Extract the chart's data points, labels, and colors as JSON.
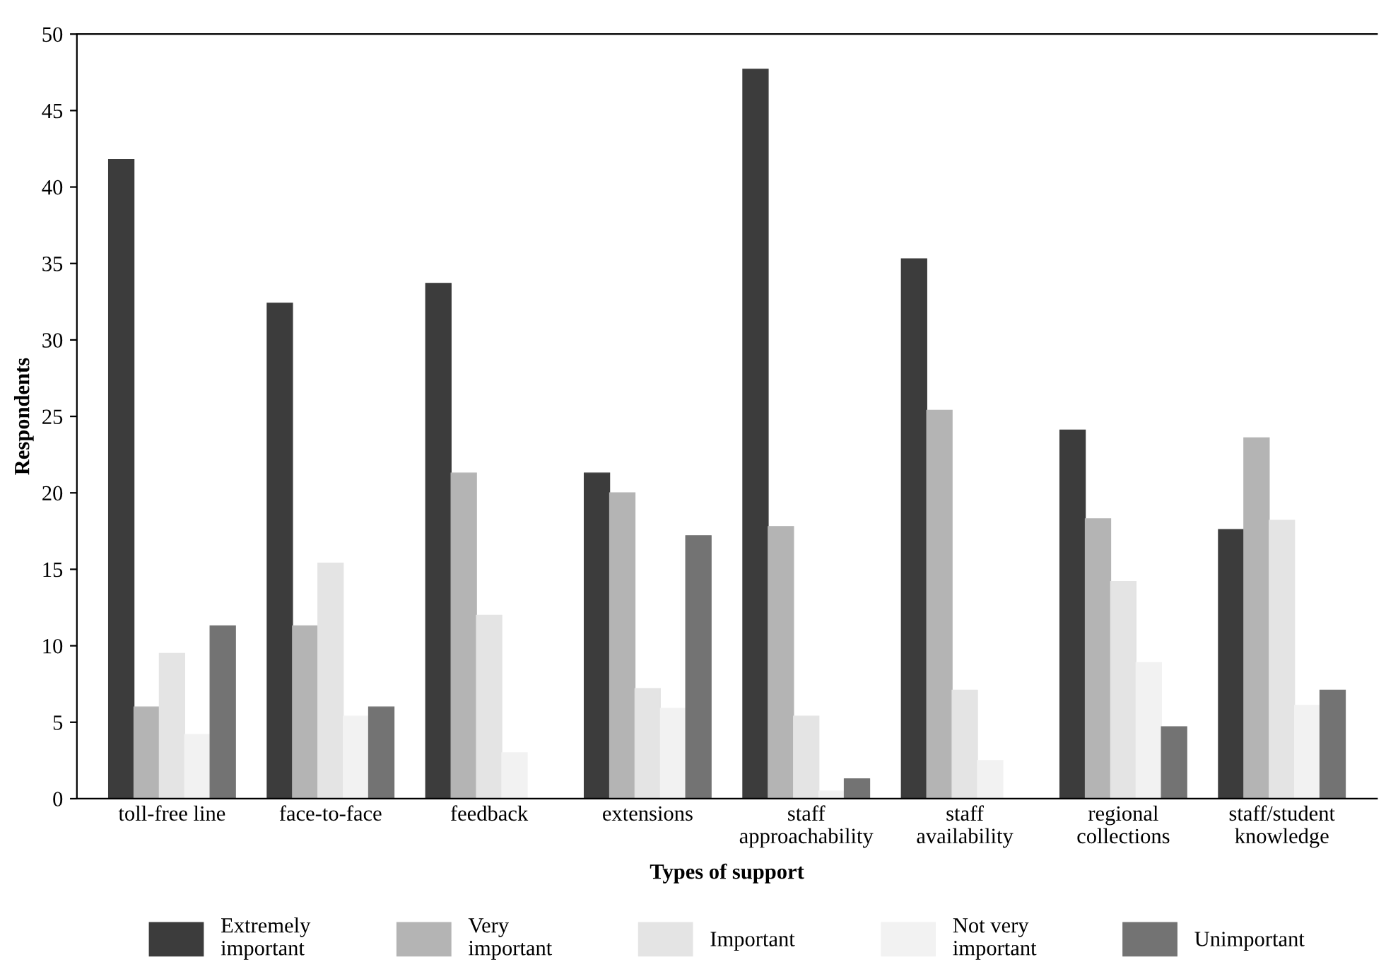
{
  "chart_data": {
    "type": "bar",
    "xlabel": "Types of support",
    "ylabel": "Respondents",
    "categories": [
      "toll-free line",
      "face-to-face",
      "feedback",
      "extensions",
      "staff\napproachability",
      "staff\navailability",
      "regional\ncollections",
      "staff/student\nknowledge"
    ],
    "series": [
      {
        "name": "Extremely\nimportant",
        "color": "#3c3c3c",
        "values": [
          41.8,
          32.4,
          33.7,
          21.3,
          47.7,
          35.3,
          24.1,
          17.6
        ]
      },
      {
        "name": "Very\nimportant",
        "color": "#b4b4b4",
        "values": [
          6.0,
          11.3,
          21.3,
          20.0,
          17.8,
          25.4,
          18.3,
          23.6
        ]
      },
      {
        "name": "Important",
        "color": "#e4e4e4",
        "values": [
          9.5,
          15.4,
          12.0,
          7.2,
          5.4,
          7.1,
          14.2,
          18.2
        ]
      },
      {
        "name": "Not very\nimportant",
        "color": "#f2f2f2",
        "values": [
          4.2,
          5.4,
          3.0,
          5.9,
          0.5,
          2.5,
          8.9,
          6.1
        ]
      },
      {
        "name": "Unimportant",
        "color": "#737373",
        "values": [
          11.3,
          6.0,
          0,
          17.2,
          1.3,
          0,
          4.7,
          7.1
        ]
      }
    ],
    "ylim": [
      0,
      50
    ],
    "yticks": [
      0,
      5,
      10,
      15,
      20,
      25,
      30,
      35,
      40,
      45,
      50
    ],
    "legend": "bottom",
    "grid": false
  }
}
